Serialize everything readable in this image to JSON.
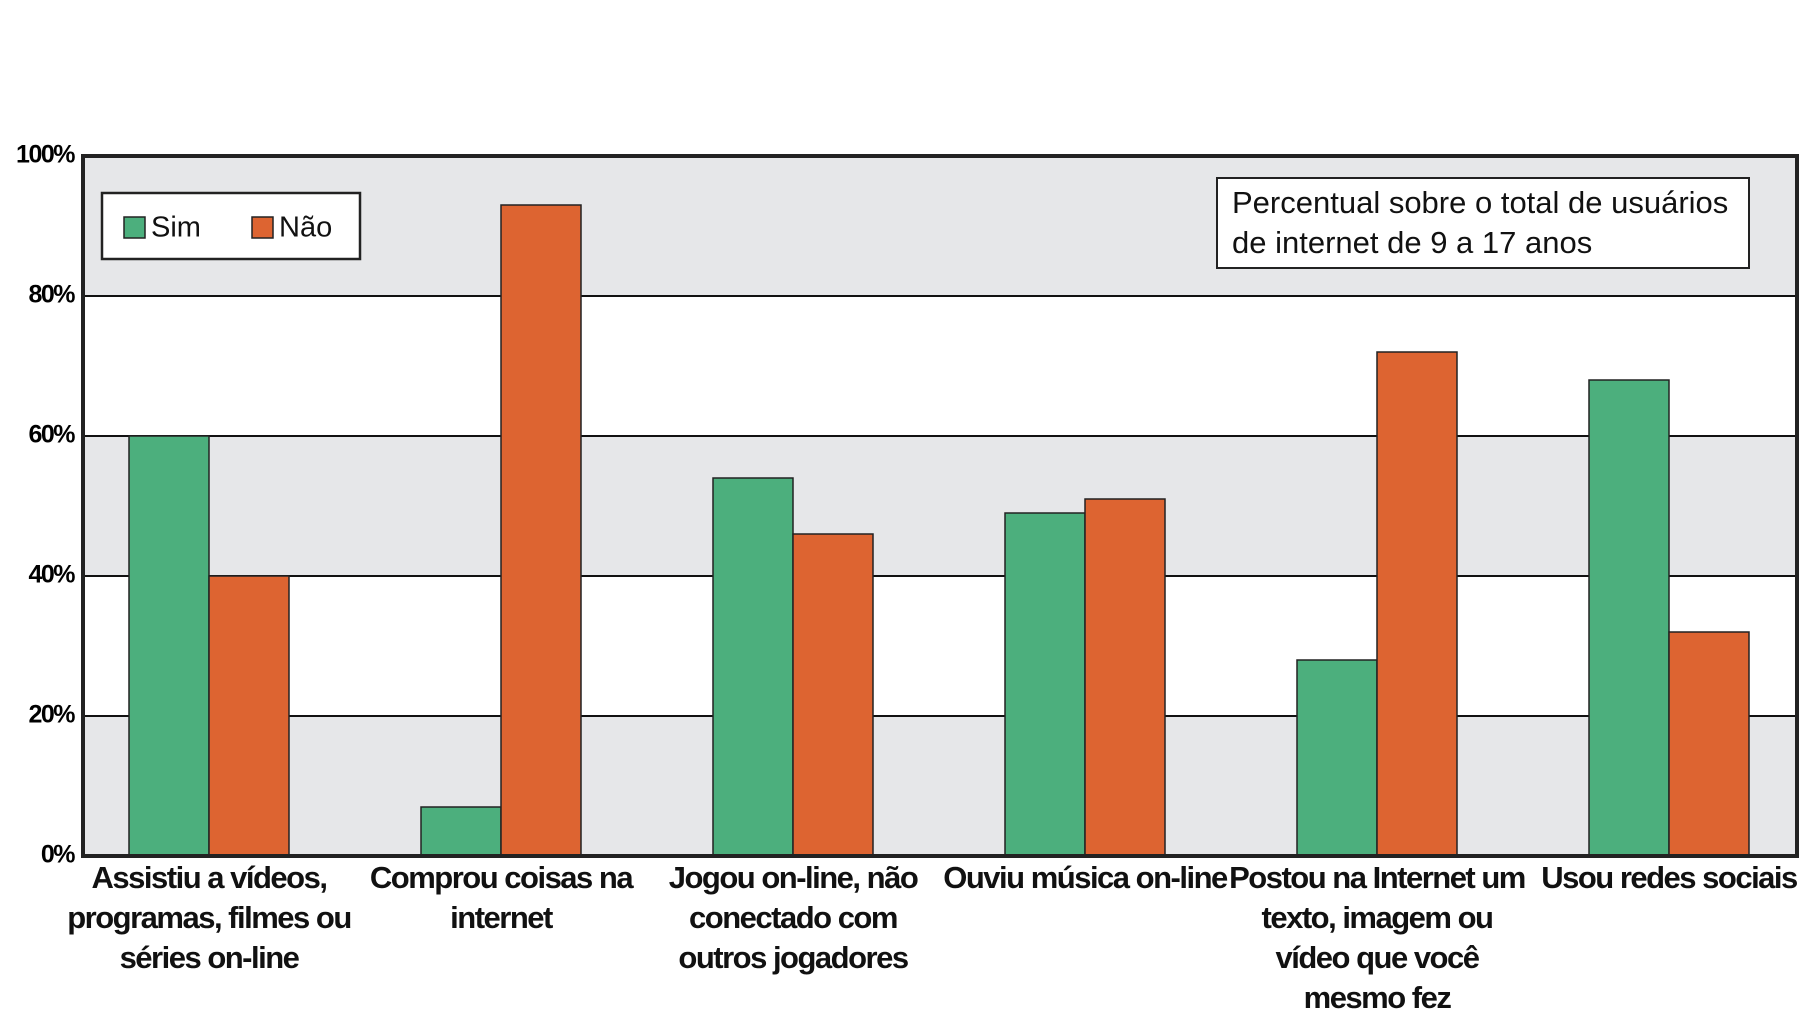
{
  "chart_data": {
    "type": "bar",
    "annotation": "Percentual sobre o total de usuários de internet de 9 a 17 anos",
    "categories": [
      "Assistiu a vídeos, programas, filmes ou séries on-line",
      "Comprou coisas na internet",
      "Jogou on-line, não conectado com outros jogadores",
      "Ouviu música on-line",
      "Postou na Internet um texto, imagem ou vídeo que você mesmo fez",
      "Usou redes sociais"
    ],
    "series": [
      {
        "name": "Sim",
        "color": "#4caf7d",
        "values": [
          60,
          7,
          54,
          49,
          28,
          68
        ]
      },
      {
        "name": "Não",
        "color": "#dd6431",
        "values": [
          40,
          93,
          46,
          51,
          72,
          32
        ]
      }
    ],
    "ylim": [
      0,
      100
    ],
    "yticks": [
      {
        "value": 0,
        "label": "0%"
      },
      {
        "value": 20,
        "label": "20%"
      },
      {
        "value": 40,
        "label": "40%"
      },
      {
        "value": 60,
        "label": "60%"
      },
      {
        "value": 80,
        "label": "80%"
      },
      {
        "value": 100,
        "label": "100%"
      }
    ],
    "grid": true,
    "legend": "top-left"
  }
}
